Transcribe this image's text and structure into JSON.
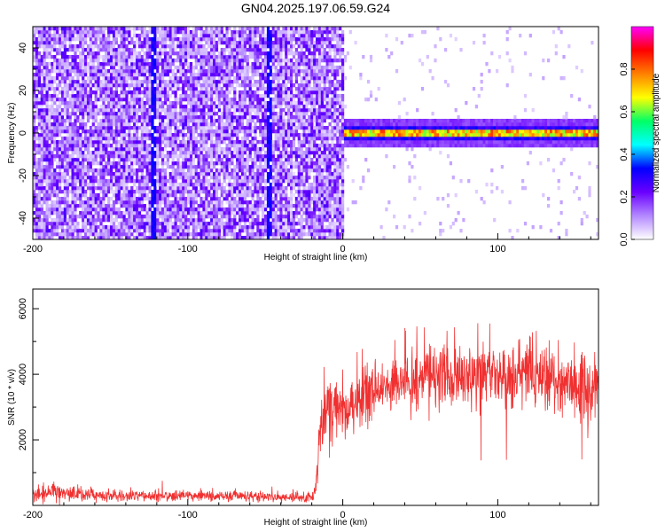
{
  "chart_data": [
    {
      "type": "heatmap",
      "title": "GN04.2025.197.06.59.G24",
      "xlabel": "Height of straight line (km)",
      "ylabel": "Frequency (Hz)",
      "xlim": [
        -200,
        165
      ],
      "ylim": [
        -50,
        50
      ],
      "xticks": [
        -200,
        -100,
        0,
        100
      ],
      "yticks": [
        -40,
        -20,
        0,
        20,
        40
      ],
      "colorbar": {
        "label": "Normalized spectral amplitude",
        "range": [
          0.0,
          1.0
        ],
        "ticks": [
          "0.0",
          "0.2",
          "0.4",
          "0.6",
          "0.8"
        ],
        "tick_values": [
          0.0,
          0.2,
          0.4,
          0.6,
          0.8
        ],
        "colormap": [
          "#ffffff",
          "#b388ff",
          "#6a00ff",
          "#0000ff",
          "#00ffff",
          "#00ff66",
          "#ffff00",
          "#ff8000",
          "#ff0000",
          "#ff00ff"
        ]
      },
      "regions": [
        {
          "x_range": [
            -200,
            0
          ],
          "description": "broadband noise",
          "amplitude": [
            0.05,
            0.2
          ]
        },
        {
          "x_range": [
            0,
            165
          ],
          "center_hz": 0,
          "halfwidth_hz": 5,
          "peak_amplitude": 0.9
        }
      ],
      "streaks_x": [
        -122,
        -47
      ]
    },
    {
      "type": "line",
      "xlabel": "Height of straight line (km)",
      "ylabel": "SNR (10 * v/v)",
      "xlim": [
        -200,
        165
      ],
      "ylim": [
        0,
        6600
      ],
      "xticks": [
        -200,
        -100,
        0,
        100
      ],
      "yticks": [
        2000,
        4000,
        6000
      ],
      "color": "#f03030",
      "envelope": {
        "x": [
          -200,
          -190,
          -185,
          -180,
          -160,
          -140,
          -120,
          -100,
          -80,
          -70,
          -60,
          -40,
          -20,
          -18,
          -16,
          -14,
          -12,
          -10,
          -8,
          -5,
          0,
          5,
          10,
          20,
          30,
          40,
          50,
          60,
          70,
          80,
          90,
          100,
          110,
          120,
          130,
          140,
          150,
          160,
          165
        ],
        "y": [
          300,
          400,
          450,
          350,
          320,
          300,
          280,
          300,
          280,
          330,
          270,
          260,
          260,
          300,
          1500,
          2600,
          2800,
          2700,
          2900,
          3000,
          2900,
          3000,
          3200,
          3500,
          3700,
          3800,
          3900,
          4000,
          4000,
          4000,
          4000,
          4000,
          3900,
          4000,
          3800,
          3800,
          3600,
          3500,
          3600
        ],
        "noise": [
          150,
          180,
          200,
          150,
          130,
          120,
          110,
          110,
          110,
          130,
          110,
          100,
          110,
          200,
          600,
          700,
          700,
          700,
          650,
          600,
          500,
          550,
          600,
          550,
          550,
          600,
          600,
          600,
          650,
          650,
          600,
          600,
          600,
          600,
          600,
          650,
          700,
          750,
          750
        ]
      }
    }
  ]
}
